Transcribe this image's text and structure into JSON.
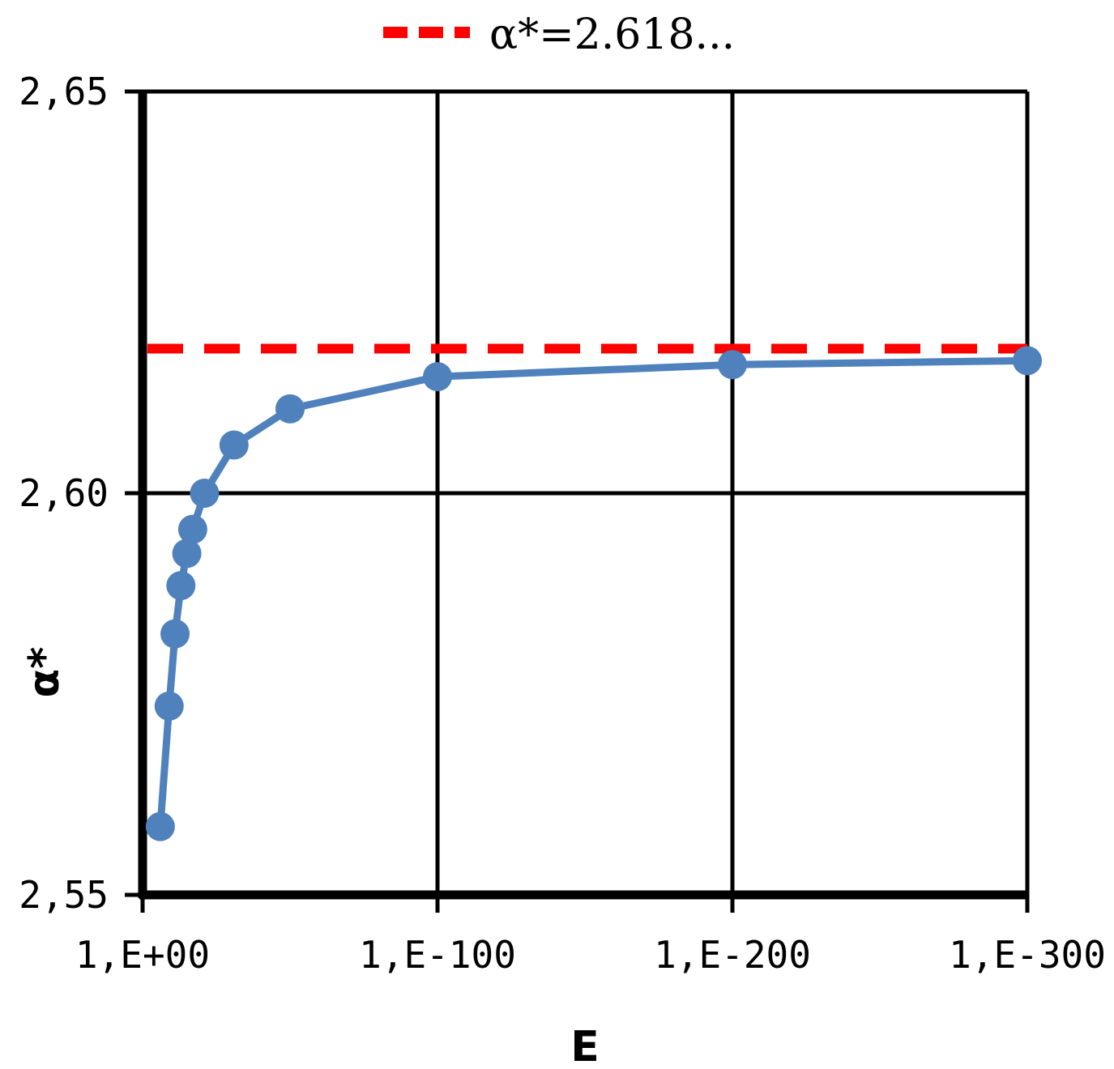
{
  "chart_data": {
    "type": "line",
    "xlabel": "E",
    "ylabel": "α*",
    "x_axis": {
      "scale": "log (tolerance E decreasing to the right)",
      "ticks": [
        {
          "value": 1.0,
          "label": "1,E+00"
        },
        {
          "value": 1e-100,
          "label": "1,E-100"
        },
        {
          "value": 1e-200,
          "label": "1,E-200"
        },
        {
          "value": 1e-300,
          "label": "1,E-300"
        }
      ],
      "range_log10": [
        0,
        -300
      ]
    },
    "y_axis": {
      "ticks": [
        {
          "value": 2.55,
          "label": "2,55"
        },
        {
          "value": 2.6,
          "label": "2,60"
        },
        {
          "value": 2.65,
          "label": "2,65"
        }
      ],
      "ylim": [
        2.55,
        2.65
      ]
    },
    "grid": true,
    "legend": {
      "placement": "top-center",
      "entries": [
        {
          "label": "α*=2.618...",
          "color": "#ff0000",
          "style": "dashed"
        }
      ]
    },
    "reference_line": {
      "y": 2.618,
      "color": "#ff0000",
      "style": "dashed"
    },
    "series": [
      {
        "color": "#4f81bd",
        "points": [
          {
            "x_log10": -6,
            "y": 2.5585
          },
          {
            "x_log10": -9,
            "y": 2.5735
          },
          {
            "x_log10": -11,
            "y": 2.5825
          },
          {
            "x_log10": -13,
            "y": 2.5885
          },
          {
            "x_log10": -15,
            "y": 2.5925
          },
          {
            "x_log10": -17,
            "y": 2.5955
          },
          {
            "x_log10": -21,
            "y": 2.6
          },
          {
            "x_log10": -31,
            "y": 2.606
          },
          {
            "x_log10": -50,
            "y": 2.6105
          },
          {
            "x_log10": -100,
            "y": 2.6145
          },
          {
            "x_log10": -200,
            "y": 2.616
          },
          {
            "x_log10": -300,
            "y": 2.6165
          }
        ]
      }
    ]
  },
  "colors": {
    "series": "#4f81bd",
    "reference": "#ff0000",
    "axis": "#000000"
  }
}
